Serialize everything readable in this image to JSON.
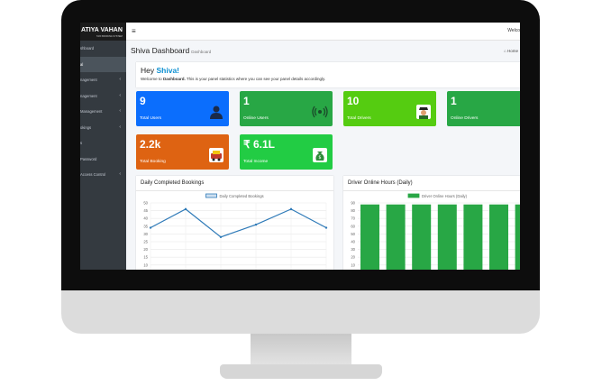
{
  "brand": {
    "name": "ATIYA VAHAN",
    "tagline": "TAXI BOOKING SYSTEM"
  },
  "navbar": {
    "menu_icon": "≡",
    "welcome": "Welco"
  },
  "sidebar": {
    "items": [
      {
        "label": "shboard",
        "chevron": ""
      },
      {
        "label": "al",
        "chevron": ""
      },
      {
        "label": "nagement",
        "chevron": "‹"
      },
      {
        "label": "nagement",
        "chevron": "‹"
      },
      {
        "label": "Management",
        "chevron": "‹"
      },
      {
        "label": "okings",
        "chevron": "‹"
      },
      {
        "label": "s",
        "chevron": ""
      },
      {
        "label": "Password",
        "chevron": ""
      },
      {
        "label": "Access Control",
        "chevron": "‹"
      }
    ]
  },
  "page": {
    "title": "Shiva Dashboard",
    "subtitle": "Dashboard",
    "breadcrumb": "Home"
  },
  "welcome": {
    "greeting": "Hey",
    "name": "Shiva!",
    "text_prefix": "Welcome to",
    "text_bold": "Dashboard.",
    "text_rest": "This is your panel statistics where you can see your panel details accordingly."
  },
  "stats": [
    {
      "value": "9",
      "label": "Total Users",
      "color": "#0b6efd",
      "icon": "user-icon"
    },
    {
      "value": "1",
      "label": "Online Users",
      "color": "#28a745",
      "icon": "signal-icon"
    },
    {
      "value": "10",
      "label": "Total Drivers",
      "color": "#55cc11",
      "icon": "driver-icon"
    },
    {
      "value": "1",
      "label": "Online Drivers",
      "color": "#28a745",
      "icon": ""
    },
    {
      "value": "2.2k",
      "label": "Total Booking",
      "color": "#de6312",
      "icon": "taxi-icon"
    },
    {
      "value": "₹ 6.1L",
      "label": "Total Income",
      "color": "#22cc44",
      "icon": "money-bag-icon"
    }
  ],
  "charts": {
    "bookings": {
      "title": "Daily Completed Bookings"
    },
    "driver_hours": {
      "title": "Driver Online Hours (Daily)"
    }
  },
  "chart_data": [
    {
      "type": "line",
      "title": "Daily Completed Bookings",
      "legend": "Daily Completed Bookings",
      "legend_position": "top-center",
      "y_ticks": [
        "50",
        "45",
        "40",
        "35",
        "30",
        "25",
        "20",
        "15",
        "10"
      ],
      "ylim": [
        10,
        50
      ],
      "x_count": 6,
      "series": [
        {
          "name": "Daily Completed Bookings",
          "values": [
            34,
            46,
            28,
            36,
            46,
            34
          ]
        }
      ],
      "color": "#2e7ab8",
      "grid": true
    },
    {
      "type": "bar",
      "title": "Driver Online Hours (Daily)",
      "legend": "Driver Online Hours (Daily)",
      "legend_position": "top-center",
      "y_ticks": [
        "90",
        "80",
        "70",
        "60",
        "50",
        "40",
        "30",
        "20",
        "10"
      ],
      "ylim": [
        10,
        90
      ],
      "series": [
        {
          "name": "Driver Online Hours (Daily)",
          "values": [
            88,
            88,
            88,
            88,
            88,
            88,
            88
          ]
        }
      ],
      "color": "#28a745",
      "grid": true
    }
  ]
}
